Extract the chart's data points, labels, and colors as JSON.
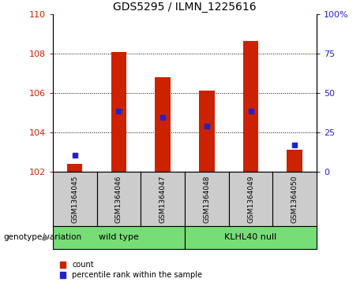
{
  "title": "GDS5295 / ILMN_1225616",
  "samples": [
    "GSM1364045",
    "GSM1364046",
    "GSM1364047",
    "GSM1364048",
    "GSM1364049",
    "GSM1364050"
  ],
  "count_values": [
    102.4,
    108.1,
    106.8,
    106.1,
    108.65,
    103.1
  ],
  "percentile_values": [
    10.5,
    38.5,
    34.5,
    29.0,
    38.5,
    17.0
  ],
  "bar_base": 102,
  "ylim_left": [
    102,
    110
  ],
  "ylim_right": [
    0,
    100
  ],
  "yticks_left": [
    102,
    104,
    106,
    108,
    110
  ],
  "yticks_right": [
    0,
    25,
    50,
    75,
    100
  ],
  "bar_color": "#cc2200",
  "dot_color": "#2222cc",
  "bar_width": 0.35,
  "label_color_left": "#cc2200",
  "label_color_right": "#2222cc",
  "sample_box_color": "#cccccc",
  "group_box_color": "#77dd77",
  "genotype_label": "genotype/variation",
  "wt_label": "wild type",
  "kl_label": "KLHL40 null",
  "legend_count": "count",
  "legend_pct": "percentile rank within the sample",
  "grid_levels": [
    104,
    106,
    108
  ],
  "title_fontsize": 10,
  "tick_fontsize": 8,
  "sample_fontsize": 6.5,
  "group_fontsize": 8,
  "legend_fontsize": 7,
  "genotype_fontsize": 7.5
}
